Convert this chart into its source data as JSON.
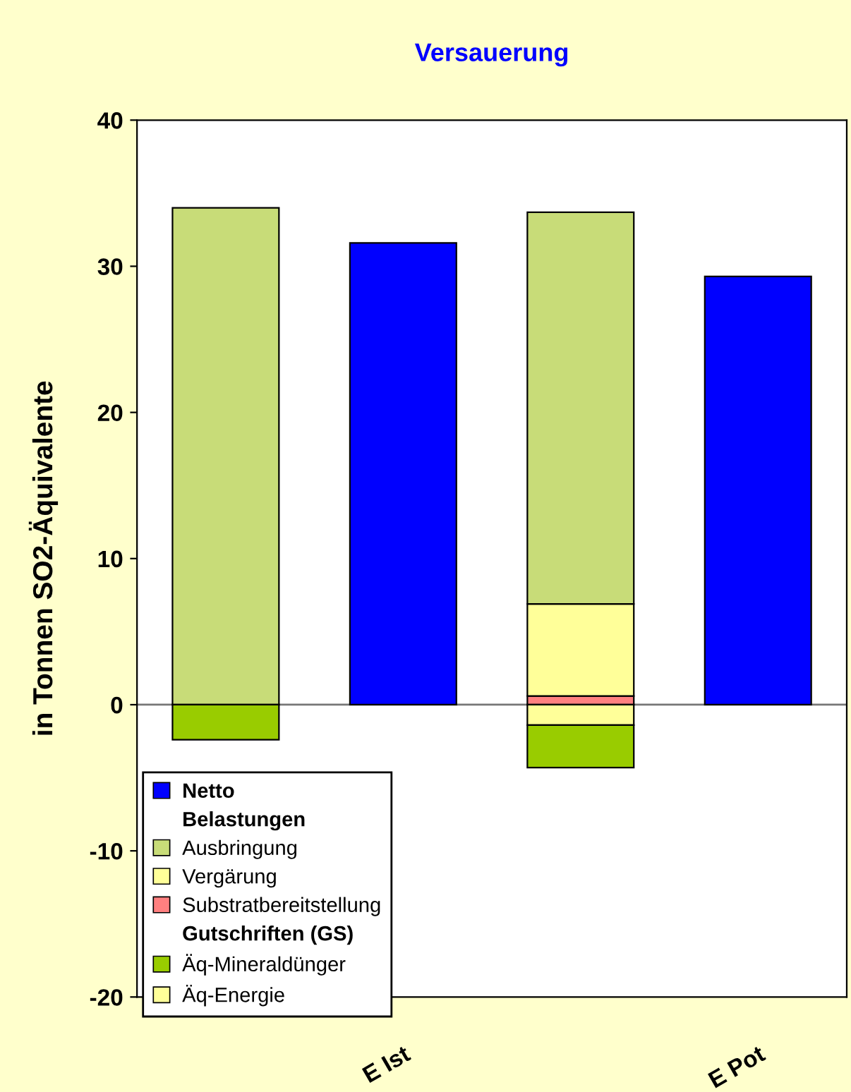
{
  "chart_data": {
    "type": "bar",
    "title": "Versauerung",
    "ylabel": "in Tonnen SO2-Äquivalente",
    "categories": [
      null,
      "E Ist",
      null,
      "E Pot"
    ],
    "stacked": true,
    "series": [
      {
        "name": "Netto",
        "color": "#0000ff",
        "values": [
          null,
          31.6,
          null,
          29.3
        ]
      },
      {
        "name": "Substratbereitstellung",
        "color": "#ff8080",
        "values": [
          null,
          null,
          0.6,
          null
        ]
      },
      {
        "name": "Vergärung",
        "color": "#ffff99",
        "values": [
          null,
          null,
          6.3,
          null
        ]
      },
      {
        "name": "Ausbringung",
        "color": "#c8dc78",
        "values": [
          34,
          null,
          26.8,
          null
        ]
      },
      {
        "name": "Äq-Energie",
        "color": "#ffff99",
        "values": [
          null,
          null,
          -1.4,
          null
        ]
      },
      {
        "name": "Äq-Mineraldünger",
        "color": "#99cc00",
        "values": [
          -2.4,
          null,
          -2.9,
          null
        ]
      }
    ],
    "annotations": [
      "Belastungen",
      "Gutschriften (GS)"
    ],
    "ylim": [
      -20,
      40
    ],
    "yticks": [
      -20,
      -10,
      0,
      10,
      20,
      30,
      40
    ],
    "legend": "bottom left"
  }
}
